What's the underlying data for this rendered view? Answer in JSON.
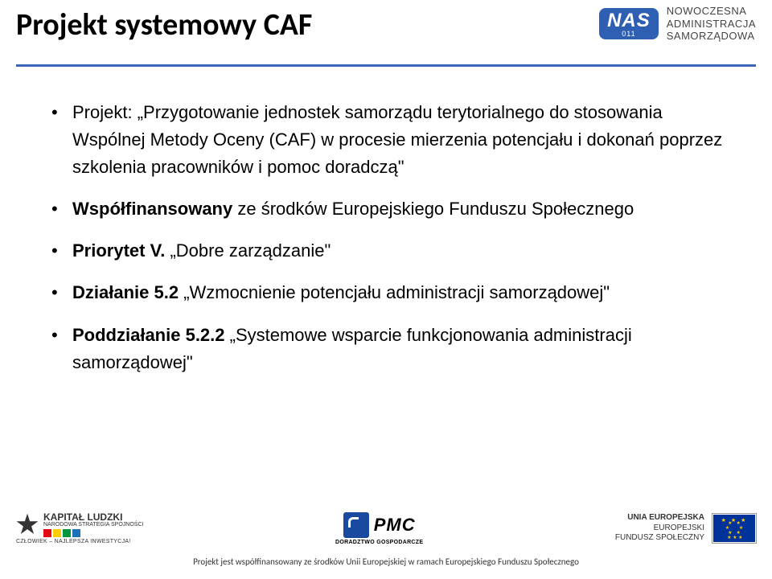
{
  "header": {
    "title": "Projekt systemowy CAF",
    "nas_main": "NAS",
    "nas_sub": "011",
    "tagline_l1": "NOWOCZESNA",
    "tagline_l2": "ADMINISTRACJA",
    "tagline_l3": "SAMORZĄDOWA",
    "underline_color": "#3a65ba"
  },
  "bullets": [
    {
      "prefix": "Projekt: ",
      "quoted": "„Przygotowanie jednostek samorządu terytorialnego do stosowania Wspólnej Metody Oceny (CAF) w procesie mierzenia potencjału i dokonań poprzez szkolenia pracowników i pomoc doradczą\""
    },
    {
      "bold_lead": "Współfinansowany",
      "rest": " ze środków Europejskiego Funduszu Społecznego"
    },
    {
      "bold_lead": "Priorytet V.",
      "rest": " „Dobre zarządzanie\""
    },
    {
      "bold_lead": "Działanie 5.2",
      "rest": " „Wzmocnienie potencjału administracji samorządowej\""
    },
    {
      "bold_lead": "Poddziałanie 5.2.2",
      "rest": " „Systemowe wsparcie funkcjonowania administracji samorządowej\""
    }
  ],
  "footer": {
    "kl_title_l1": "KAPITAŁ LUDZKI",
    "kl_title_l2": "NARODOWA STRATEGIA SPÓJNOŚCI",
    "kl_sub": "CZŁOWIEK – NAJLEPSZA INWESTYCJA!",
    "kl_colors": [
      "#e30613",
      "#ffcc00",
      "#009640",
      "#1d71b8"
    ],
    "pmc_text": "PMC",
    "pmc_sub": "DORADZTWO GOSPODARCZE",
    "eu_l1": "UNIA EUROPEJSKA",
    "eu_l2": "EUROPEJSKI",
    "eu_l3": "FUNDUSZ SPOŁECZNY",
    "line": "Projekt jest współfinansowany ze środków Unii Europejskiej w ramach Europejskiego Funduszu Społecznego"
  }
}
